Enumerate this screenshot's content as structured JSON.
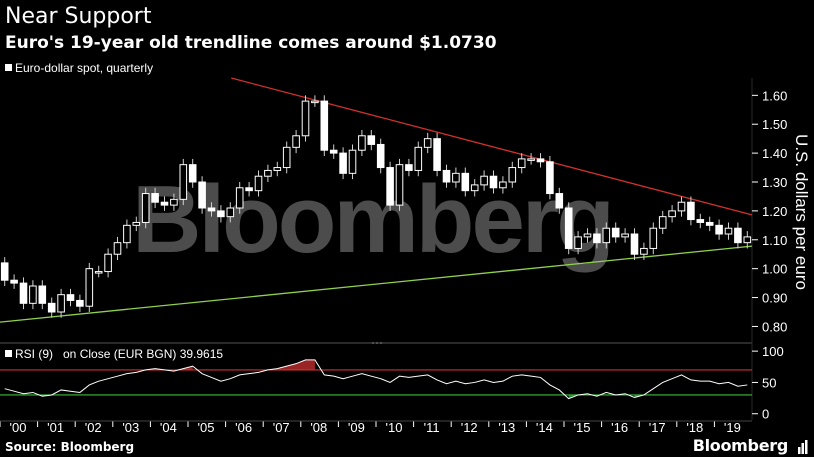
{
  "title": "Near Support",
  "subtitle": "Euro's 19-year old trendline comes around $1.0730",
  "source": "Source: Bloomberg",
  "brand": "Bloomberg",
  "watermark": "Bloomberg",
  "colors": {
    "background": "#000000",
    "candle_up": "#ffffff",
    "candle_down": "#ffffff",
    "resistance_line": "#d0312d",
    "support_line": "#8fd14f",
    "rsi_line": "#ffffff",
    "rsi_upper": "#d0312d",
    "rsi_lower": "#3dbb3d",
    "rsi_overbought_fill": "#b52a2a",
    "rsi_oversold_fill": "#1f9e3a"
  },
  "chart_data": [
    {
      "type": "candlestick",
      "legend": "Euro-dollar spot, quarterly",
      "ylabel": "U.S. dollars per euro",
      "yticks": [
        "1.60",
        "1.50",
        "1.40",
        "1.30",
        "1.20",
        "1.10",
        "1.00",
        "0.90",
        "0.80"
      ],
      "ylim": [
        0.76,
        1.66
      ],
      "xticks": [
        "'00",
        "'01",
        "'02",
        "'03",
        "'04",
        "'05",
        "'06",
        "'07",
        "'08",
        "'09",
        "'10",
        "'11",
        "'12",
        "'13",
        "'14",
        "'15",
        "'16",
        "'17",
        "'18",
        "'19"
      ],
      "x_start": 2000.0,
      "x_end": 2020.0,
      "candles": [
        {
          "q": "2000Q1",
          "open": 1.02,
          "close": 0.96
        },
        {
          "q": "2000Q2",
          "open": 0.96,
          "close": 0.95
        },
        {
          "q": "2000Q3",
          "open": 0.95,
          "close": 0.88
        },
        {
          "q": "2000Q4",
          "open": 0.88,
          "close": 0.94
        },
        {
          "q": "2001Q1",
          "open": 0.94,
          "close": 0.88
        },
        {
          "q": "2001Q2",
          "open": 0.88,
          "close": 0.85
        },
        {
          "q": "2001Q3",
          "open": 0.85,
          "close": 0.91
        },
        {
          "q": "2001Q4",
          "open": 0.91,
          "close": 0.89
        },
        {
          "q": "2002Q1",
          "open": 0.89,
          "close": 0.87
        },
        {
          "q": "2002Q2",
          "open": 0.87,
          "close": 1.0
        },
        {
          "q": "2002Q3",
          "open": 0.99,
          "close": 0.99
        },
        {
          "q": "2002Q4",
          "open": 0.99,
          "close": 1.05
        },
        {
          "q": "2003Q1",
          "open": 1.05,
          "close": 1.09
        },
        {
          "q": "2003Q2",
          "open": 1.09,
          "close": 1.15
        },
        {
          "q": "2003Q3",
          "open": 1.15,
          "close": 1.16
        },
        {
          "q": "2003Q4",
          "open": 1.16,
          "close": 1.26
        },
        {
          "q": "2004Q1",
          "open": 1.26,
          "close": 1.23
        },
        {
          "q": "2004Q2",
          "open": 1.23,
          "close": 1.22
        },
        {
          "q": "2004Q3",
          "open": 1.22,
          "close": 1.24
        },
        {
          "q": "2004Q4",
          "open": 1.24,
          "close": 1.36
        },
        {
          "q": "2005Q1",
          "open": 1.36,
          "close": 1.3
        },
        {
          "q": "2005Q2",
          "open": 1.3,
          "close": 1.21
        },
        {
          "q": "2005Q3",
          "open": 1.21,
          "close": 1.2
        },
        {
          "q": "2005Q4",
          "open": 1.2,
          "close": 1.18
        },
        {
          "q": "2006Q1",
          "open": 1.18,
          "close": 1.21
        },
        {
          "q": "2006Q2",
          "open": 1.21,
          "close": 1.28
        },
        {
          "q": "2006Q3",
          "open": 1.28,
          "close": 1.27
        },
        {
          "q": "2006Q4",
          "open": 1.27,
          "close": 1.32
        },
        {
          "q": "2007Q1",
          "open": 1.32,
          "close": 1.34
        },
        {
          "q": "2007Q2",
          "open": 1.34,
          "close": 1.35
        },
        {
          "q": "2007Q3",
          "open": 1.35,
          "close": 1.42
        },
        {
          "q": "2007Q4",
          "open": 1.42,
          "close": 1.46
        },
        {
          "q": "2008Q1",
          "open": 1.46,
          "close": 1.58
        },
        {
          "q": "2008Q2",
          "open": 1.58,
          "close": 1.58
        },
        {
          "q": "2008Q3",
          "open": 1.58,
          "close": 1.41
        },
        {
          "q": "2008Q4",
          "open": 1.41,
          "close": 1.4
        },
        {
          "q": "2009Q1",
          "open": 1.4,
          "close": 1.33
        },
        {
          "q": "2009Q2",
          "open": 1.33,
          "close": 1.41
        },
        {
          "q": "2009Q3",
          "open": 1.41,
          "close": 1.46
        },
        {
          "q": "2009Q4",
          "open": 1.46,
          "close": 1.43
        },
        {
          "q": "2010Q1",
          "open": 1.43,
          "close": 1.35
        },
        {
          "q": "2010Q2",
          "open": 1.35,
          "close": 1.22
        },
        {
          "q": "2010Q3",
          "open": 1.22,
          "close": 1.36
        },
        {
          "q": "2010Q4",
          "open": 1.36,
          "close": 1.34
        },
        {
          "q": "2011Q1",
          "open": 1.34,
          "close": 1.42
        },
        {
          "q": "2011Q2",
          "open": 1.42,
          "close": 1.45
        },
        {
          "q": "2011Q3",
          "open": 1.45,
          "close": 1.34
        },
        {
          "q": "2011Q4",
          "open": 1.34,
          "close": 1.3
        },
        {
          "q": "2012Q1",
          "open": 1.3,
          "close": 1.33
        },
        {
          "q": "2012Q2",
          "open": 1.33,
          "close": 1.27
        },
        {
          "q": "2012Q3",
          "open": 1.27,
          "close": 1.29
        },
        {
          "q": "2012Q4",
          "open": 1.29,
          "close": 1.32
        },
        {
          "q": "2013Q1",
          "open": 1.32,
          "close": 1.28
        },
        {
          "q": "2013Q2",
          "open": 1.28,
          "close": 1.3
        },
        {
          "q": "2013Q3",
          "open": 1.3,
          "close": 1.35
        },
        {
          "q": "2013Q4",
          "open": 1.35,
          "close": 1.38
        },
        {
          "q": "2014Q1",
          "open": 1.38,
          "close": 1.38
        },
        {
          "q": "2014Q2",
          "open": 1.38,
          "close": 1.37
        },
        {
          "q": "2014Q3",
          "open": 1.37,
          "close": 1.26
        },
        {
          "q": "2014Q4",
          "open": 1.26,
          "close": 1.21
        },
        {
          "q": "2015Q1",
          "open": 1.21,
          "close": 1.07
        },
        {
          "q": "2015Q2",
          "open": 1.07,
          "close": 1.11
        },
        {
          "q": "2015Q3",
          "open": 1.11,
          "close": 1.12
        },
        {
          "q": "2015Q4",
          "open": 1.12,
          "close": 1.09
        },
        {
          "q": "2016Q1",
          "open": 1.09,
          "close": 1.14
        },
        {
          "q": "2016Q2",
          "open": 1.14,
          "close": 1.11
        },
        {
          "q": "2016Q3",
          "open": 1.11,
          "close": 1.12
        },
        {
          "q": "2016Q4",
          "open": 1.12,
          "close": 1.05
        },
        {
          "q": "2017Q1",
          "open": 1.05,
          "close": 1.07
        },
        {
          "q": "2017Q2",
          "open": 1.07,
          "close": 1.14
        },
        {
          "q": "2017Q3",
          "open": 1.14,
          "close": 1.18
        },
        {
          "q": "2017Q4",
          "open": 1.18,
          "close": 1.2
        },
        {
          "q": "2018Q1",
          "open": 1.2,
          "close": 1.23
        },
        {
          "q": "2018Q2",
          "open": 1.23,
          "close": 1.17
        },
        {
          "q": "2018Q3",
          "open": 1.17,
          "close": 1.16
        },
        {
          "q": "2018Q4",
          "open": 1.16,
          "close": 1.15
        },
        {
          "q": "2019Q1",
          "open": 1.15,
          "close": 1.12
        },
        {
          "q": "2019Q2",
          "open": 1.12,
          "close": 1.14
        },
        {
          "q": "2019Q3",
          "open": 1.14,
          "close": 1.09
        },
        {
          "q": "2019Q4",
          "open": 1.09,
          "close": 1.11
        }
      ],
      "trendlines": [
        {
          "name": "resistance",
          "color": "#d0312d",
          "points": [
            [
              2006.15,
              1.66
            ],
            [
              2020.0,
              1.186
            ]
          ]
        },
        {
          "name": "support",
          "color": "#8fd14f",
          "points": [
            [
              2000.0,
              0.815
            ],
            [
              2020.0,
              1.078
            ]
          ]
        }
      ]
    },
    {
      "type": "line",
      "legend": "RSI (9)   on Close (EUR BGN) 39.9615",
      "yticks": [
        "100",
        "50",
        "0"
      ],
      "ylim": [
        -10,
        105
      ],
      "upper_band": 70,
      "lower_band": 30,
      "values": [
        40,
        36,
        32,
        34,
        28,
        30,
        38,
        36,
        34,
        46,
        52,
        56,
        60,
        64,
        66,
        70,
        72,
        70,
        68,
        72,
        76,
        64,
        58,
        52,
        56,
        62,
        64,
        66,
        70,
        72,
        76,
        80,
        86,
        86,
        62,
        60,
        56,
        60,
        64,
        60,
        56,
        50,
        60,
        58,
        60,
        62,
        54,
        48,
        52,
        48,
        50,
        54,
        50,
        52,
        60,
        62,
        60,
        58,
        46,
        38,
        24,
        30,
        32,
        28,
        34,
        30,
        32,
        26,
        30,
        40,
        50,
        56,
        62,
        54,
        52,
        52,
        48,
        50,
        44,
        46
      ]
    }
  ]
}
